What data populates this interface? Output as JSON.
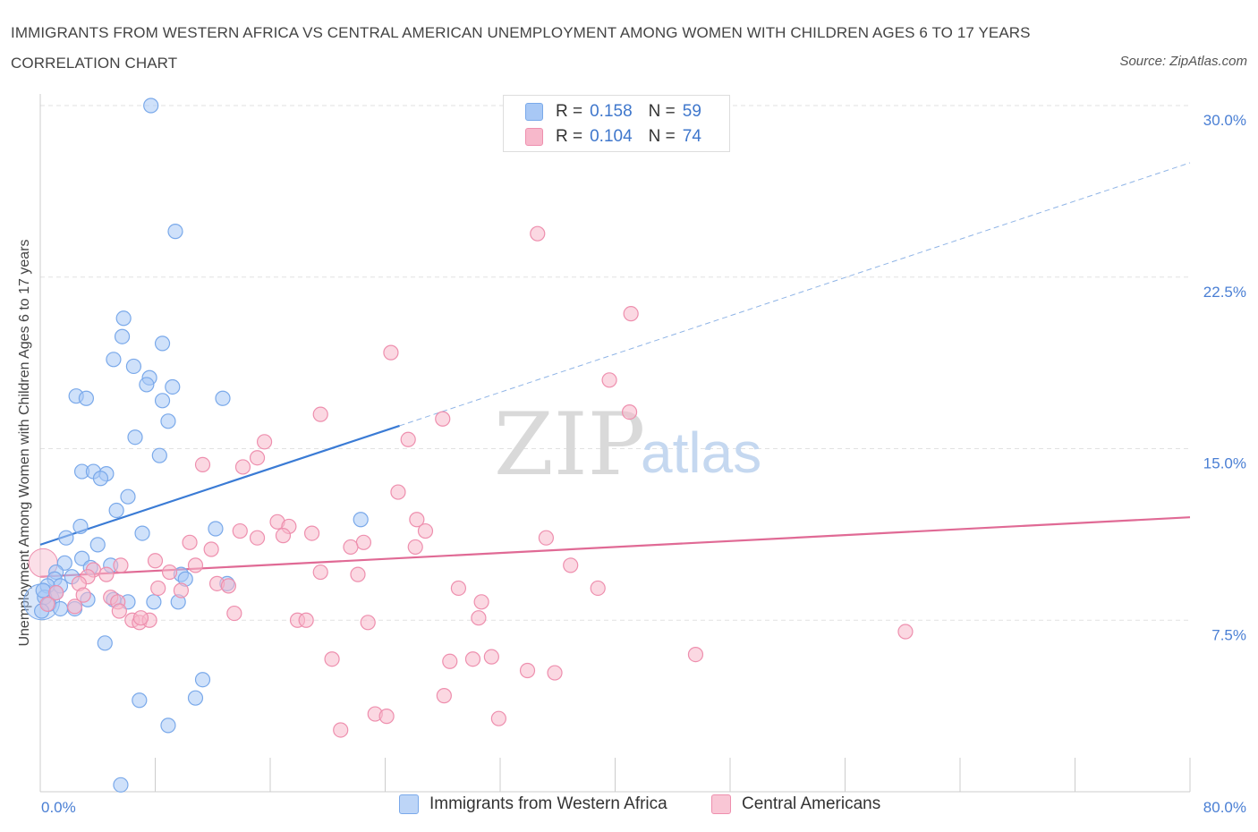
{
  "title": "IMMIGRANTS FROM WESTERN AFRICA VS CENTRAL AMERICAN UNEMPLOYMENT AMONG WOMEN WITH CHILDREN AGES 6 TO 17 YEARS CORRELATION CHART",
  "source": "Source: ZipAtlas.com",
  "watermark": {
    "zip": "ZIP",
    "atlas": "atlas"
  },
  "legend": {
    "rows": [
      {
        "r_label": "R =",
        "r_value": "0.158",
        "n_label": "N =",
        "n_value": "59",
        "color": "#a8c8f5"
      },
      {
        "r_label": "R =",
        "r_value": "0.104",
        "n_label": "N =",
        "n_value": "74",
        "color": "#f7b8cb"
      }
    ]
  },
  "bottom_legend": [
    {
      "label": "Immigrants from Western Africa",
      "color": "#a8c8f5"
    },
    {
      "label": "Central Americans",
      "color": "#f7b8cb"
    }
  ],
  "chart_data": {
    "type": "scatter",
    "ylabel": "Unemployment Among Women with Children Ages 6 to 17 years",
    "xlim": [
      0,
      80
    ],
    "ylim": [
      0,
      30
    ],
    "x_tick_labels": [
      {
        "value": 0,
        "label": "0.0%"
      },
      {
        "value": 80,
        "label": "80.0%"
      }
    ],
    "y_tick_labels": [
      {
        "value": 7.5,
        "label": "7.5%"
      },
      {
        "value": 15,
        "label": "15.0%"
      },
      {
        "value": 22.5,
        "label": "22.5%"
      },
      {
        "value": 30,
        "label": "30.0%"
      }
    ],
    "grid": true,
    "series": [
      {
        "name": "Immigrants from Western Africa",
        "color": "#7aa9ea",
        "fill": "#a8c8f5",
        "trend": {
          "x0": 0,
          "y0": 10.8,
          "x1": 25,
          "y1": 16.0,
          "dashed_to_x": 80,
          "dashed_to_y": 27.5,
          "color": "#3a7bd5"
        },
        "points": [
          [
            7.7,
            30.0
          ],
          [
            9.4,
            24.5
          ],
          [
            5.8,
            20.7
          ],
          [
            5.7,
            19.9
          ],
          [
            8.5,
            19.6
          ],
          [
            5.1,
            18.9
          ],
          [
            6.5,
            18.6
          ],
          [
            7.6,
            18.1
          ],
          [
            7.4,
            17.8
          ],
          [
            9.2,
            17.7
          ],
          [
            8.5,
            17.1
          ],
          [
            12.7,
            17.2
          ],
          [
            2.5,
            17.3
          ],
          [
            3.2,
            17.2
          ],
          [
            8.9,
            16.2
          ],
          [
            6.6,
            15.5
          ],
          [
            8.3,
            14.7
          ],
          [
            2.9,
            14.0
          ],
          [
            3.7,
            14.0
          ],
          [
            4.6,
            13.9
          ],
          [
            4.2,
            13.7
          ],
          [
            6.1,
            12.9
          ],
          [
            5.3,
            12.3
          ],
          [
            12.2,
            11.5
          ],
          [
            22.3,
            11.9
          ],
          [
            2.8,
            11.6
          ],
          [
            1.8,
            11.1
          ],
          [
            7.1,
            11.3
          ],
          [
            4.0,
            10.8
          ],
          [
            2.9,
            10.2
          ],
          [
            1.7,
            10.0
          ],
          [
            1.1,
            9.6
          ],
          [
            3.5,
            9.8
          ],
          [
            4.9,
            9.9
          ],
          [
            9.8,
            9.5
          ],
          [
            1.0,
            9.3
          ],
          [
            2.2,
            9.4
          ],
          [
            1.4,
            9.0
          ],
          [
            0.5,
            9.0
          ],
          [
            10.1,
            9.3
          ],
          [
            13.0,
            9.1
          ],
          [
            0.3,
            8.5
          ],
          [
            1.1,
            8.7
          ],
          [
            3.3,
            8.4
          ],
          [
            5.1,
            8.4
          ],
          [
            6.1,
            8.3
          ],
          [
            7.9,
            8.3
          ],
          [
            9.6,
            8.3
          ],
          [
            0.6,
            8.2
          ],
          [
            1.4,
            8.0
          ],
          [
            2.4,
            8.0
          ],
          [
            0.1,
            7.9
          ],
          [
            4.5,
            6.5
          ],
          [
            11.3,
            4.9
          ],
          [
            10.8,
            4.1
          ],
          [
            6.9,
            4.0
          ],
          [
            8.9,
            2.9
          ],
          [
            5.6,
            0.3
          ],
          [
            0.2,
            8.8
          ]
        ]
      },
      {
        "name": "Central Americans",
        "color": "#ee8fae",
        "fill": "#f7b8cb",
        "trend": {
          "x0": 0,
          "y0": 9.4,
          "x1": 80,
          "y1": 12.0,
          "color": "#e06a95"
        },
        "points": [
          [
            34.6,
            24.4
          ],
          [
            41.1,
            20.9
          ],
          [
            24.4,
            19.2
          ],
          [
            39.6,
            18.0
          ],
          [
            41.0,
            16.6
          ],
          [
            28.0,
            16.3
          ],
          [
            19.5,
            16.5
          ],
          [
            25.6,
            15.4
          ],
          [
            15.6,
            15.3
          ],
          [
            15.1,
            14.6
          ],
          [
            14.1,
            14.2
          ],
          [
            11.3,
            14.3
          ],
          [
            24.9,
            13.1
          ],
          [
            26.2,
            11.9
          ],
          [
            16.5,
            11.8
          ],
          [
            17.3,
            11.6
          ],
          [
            26.8,
            11.4
          ],
          [
            13.9,
            11.4
          ],
          [
            15.1,
            11.1
          ],
          [
            16.9,
            11.2
          ],
          [
            18.9,
            11.3
          ],
          [
            35.2,
            11.1
          ],
          [
            10.4,
            10.9
          ],
          [
            22.5,
            10.9
          ],
          [
            21.6,
            10.7
          ],
          [
            26.1,
            10.7
          ],
          [
            11.9,
            10.6
          ],
          [
            8.0,
            10.1
          ],
          [
            36.9,
            9.9
          ],
          [
            10.8,
            9.9
          ],
          [
            3.7,
            9.7
          ],
          [
            5.6,
            9.9
          ],
          [
            9.0,
            9.6
          ],
          [
            19.5,
            9.6
          ],
          [
            22.1,
            9.5
          ],
          [
            3.3,
            9.4
          ],
          [
            4.6,
            9.5
          ],
          [
            12.3,
            9.1
          ],
          [
            13.1,
            9.0
          ],
          [
            2.7,
            9.1
          ],
          [
            29.1,
            8.9
          ],
          [
            38.8,
            8.9
          ],
          [
            4.9,
            8.5
          ],
          [
            8.2,
            8.9
          ],
          [
            9.8,
            8.8
          ],
          [
            1.1,
            8.7
          ],
          [
            3.0,
            8.6
          ],
          [
            5.4,
            8.3
          ],
          [
            2.4,
            8.1
          ],
          [
            0.5,
            8.2
          ],
          [
            30.7,
            8.3
          ],
          [
            5.5,
            7.9
          ],
          [
            13.5,
            7.8
          ],
          [
            6.4,
            7.5
          ],
          [
            6.9,
            7.4
          ],
          [
            7.6,
            7.5
          ],
          [
            7.0,
            7.6
          ],
          [
            17.9,
            7.5
          ],
          [
            18.5,
            7.5
          ],
          [
            22.8,
            7.4
          ],
          [
            30.5,
            7.6
          ],
          [
            60.2,
            7.0
          ],
          [
            45.6,
            6.0
          ],
          [
            31.4,
            5.9
          ],
          [
            20.3,
            5.8
          ],
          [
            28.5,
            5.7
          ],
          [
            30.1,
            5.8
          ],
          [
            35.8,
            5.2
          ],
          [
            33.9,
            5.3
          ],
          [
            28.1,
            4.2
          ],
          [
            23.3,
            3.4
          ],
          [
            24.1,
            3.3
          ],
          [
            31.9,
            3.2
          ],
          [
            20.9,
            2.7
          ]
        ]
      }
    ]
  }
}
